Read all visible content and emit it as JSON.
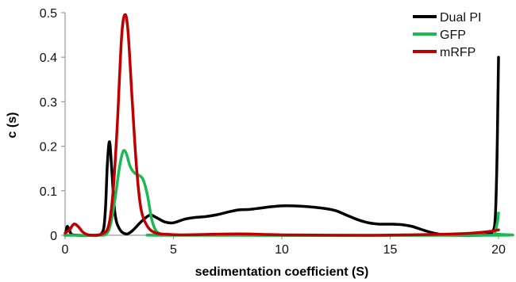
{
  "chart_data": {
    "type": "line",
    "xlabel": "sedimentation coefficient (S)",
    "ylabel": "c (s)",
    "xlim": [
      0,
      20
    ],
    "ylim": [
      0,
      0.5
    ],
    "x_ticks": [
      0,
      5,
      10,
      15,
      20
    ],
    "x_tick_labels": [
      "0",
      "5",
      "10",
      "15",
      "20"
    ],
    "y_ticks": [
      0,
      0.1,
      0.2,
      0.3,
      0.4,
      0.5
    ],
    "y_tick_labels": [
      "0",
      "0.1",
      "0.2",
      "0.3",
      "0.4",
      "0.5"
    ],
    "grid": false,
    "legend_position": "top-right",
    "series": [
      {
        "name": "Dual PI",
        "color": "#000000",
        "points": [
          [
            0,
            0
          ],
          [
            0.05,
            0.01
          ],
          [
            0.1,
            0.02
          ],
          [
            0.2,
            0.012
          ],
          [
            0.3,
            0.002
          ],
          [
            0.6,
            0
          ],
          [
            1.2,
            0
          ],
          [
            1.7,
            0.005
          ],
          [
            1.85,
            0.05
          ],
          [
            1.95,
            0.16
          ],
          [
            2.05,
            0.21
          ],
          [
            2.15,
            0.15
          ],
          [
            2.3,
            0.05
          ],
          [
            2.5,
            0.015
          ],
          [
            2.8,
            0.003
          ],
          [
            3.1,
            0.01
          ],
          [
            3.5,
            0.03
          ],
          [
            3.9,
            0.045
          ],
          [
            4.2,
            0.04
          ],
          [
            4.6,
            0.03
          ],
          [
            5.0,
            0.028
          ],
          [
            5.5,
            0.036
          ],
          [
            6.0,
            0.04
          ],
          [
            6.5,
            0.042
          ],
          [
            7.0,
            0.046
          ],
          [
            7.5,
            0.052
          ],
          [
            8.0,
            0.057
          ],
          [
            8.5,
            0.058
          ],
          [
            9.0,
            0.061
          ],
          [
            9.5,
            0.064
          ],
          [
            10.0,
            0.066
          ],
          [
            10.5,
            0.066
          ],
          [
            11.0,
            0.065
          ],
          [
            11.5,
            0.063
          ],
          [
            12.0,
            0.06
          ],
          [
            12.5,
            0.055
          ],
          [
            13.0,
            0.045
          ],
          [
            13.5,
            0.035
          ],
          [
            14.0,
            0.028
          ],
          [
            14.5,
            0.025
          ],
          [
            15.0,
            0.025
          ],
          [
            15.5,
            0.024
          ],
          [
            16.0,
            0.02
          ],
          [
            16.5,
            0.012
          ],
          [
            17.0,
            0.005
          ],
          [
            17.5,
            0.001
          ],
          [
            18.0,
            0
          ],
          [
            19.0,
            0
          ],
          [
            19.5,
            0.002
          ],
          [
            19.75,
            0.01
          ],
          [
            19.85,
            0.04
          ],
          [
            19.92,
            0.15
          ],
          [
            19.97,
            0.3
          ],
          [
            20.0,
            0.4
          ]
        ]
      },
      {
        "name": "GFP",
        "color": "#1db954",
        "points": [
          [
            0,
            0
          ],
          [
            0.2,
            0
          ],
          [
            1.5,
            0
          ],
          [
            1.9,
            0.003
          ],
          [
            2.1,
            0.025
          ],
          [
            2.3,
            0.08
          ],
          [
            2.5,
            0.15
          ],
          [
            2.65,
            0.185
          ],
          [
            2.75,
            0.19
          ],
          [
            2.85,
            0.18
          ],
          [
            3.0,
            0.155
          ],
          [
            3.2,
            0.14
          ],
          [
            3.4,
            0.135
          ],
          [
            3.6,
            0.125
          ],
          [
            3.8,
            0.09
          ],
          [
            4.0,
            0.035
          ],
          [
            4.2,
            0.01
          ],
          [
            4.5,
            0.002
          ],
          [
            5.0,
            0
          ],
          [
            19.5,
            0
          ],
          [
            19.8,
            0.005
          ],
          [
            19.95,
            0.03
          ],
          [
            20.0,
            0.05
          ]
        ]
      },
      {
        "name": "mRFP",
        "color": "#c00000",
        "points": [
          [
            0,
            0.005
          ],
          [
            0.2,
            0.012
          ],
          [
            0.4,
            0.025
          ],
          [
            0.6,
            0.02
          ],
          [
            0.8,
            0.008
          ],
          [
            1.0,
            0.002
          ],
          [
            1.3,
            0
          ],
          [
            1.7,
            0.003
          ],
          [
            2.0,
            0.02
          ],
          [
            2.2,
            0.09
          ],
          [
            2.4,
            0.24
          ],
          [
            2.6,
            0.44
          ],
          [
            2.75,
            0.495
          ],
          [
            2.9,
            0.46
          ],
          [
            3.1,
            0.3
          ],
          [
            3.3,
            0.15
          ],
          [
            3.5,
            0.06
          ],
          [
            3.8,
            0.02
          ],
          [
            4.2,
            0.005
          ],
          [
            4.8,
            0.002
          ],
          [
            5.5,
            0.001
          ],
          [
            8.0,
            0.003
          ],
          [
            10.0,
            0.001
          ],
          [
            14.0,
            0
          ],
          [
            17.0,
            0.002
          ],
          [
            18.5,
            0.004
          ],
          [
            19.5,
            0.008
          ],
          [
            20.0,
            0.012
          ]
        ]
      }
    ]
  }
}
